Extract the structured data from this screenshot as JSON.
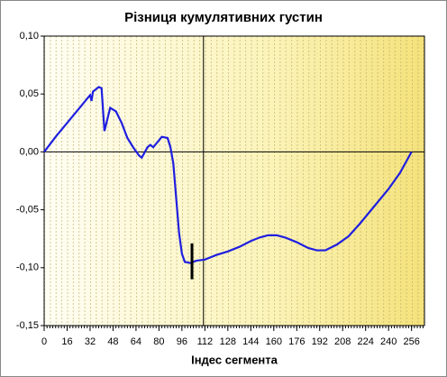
{
  "chart_data": {
    "type": "line",
    "title": "Різниця кумулятивних густин",
    "x_label": "Індес сегмента",
    "x": [
      0,
      8,
      16,
      24,
      30,
      32,
      33,
      34,
      36,
      38,
      40,
      42,
      44,
      46,
      50,
      54,
      58,
      62,
      66,
      68,
      72,
      74,
      76,
      80,
      82,
      86,
      88,
      90,
      92,
      94,
      96,
      98,
      102,
      106,
      112,
      120,
      128,
      136,
      144,
      150,
      156,
      162,
      168,
      176,
      184,
      190,
      196,
      204,
      212,
      220,
      230,
      240,
      248,
      256
    ],
    "series": [
      {
        "color": "#1f1fe0",
        "values": [
          0,
          0.013,
          0.025,
          0.037,
          0.046,
          0.049,
          0.044,
          0.052,
          0.054,
          0.056,
          0.055,
          0.018,
          0.028,
          0.038,
          0.035,
          0.025,
          0.012,
          0.004,
          -0.003,
          -0.005,
          0.004,
          0.006,
          0.004,
          0.01,
          0.013,
          0.012,
          0.004,
          -0.01,
          -0.04,
          -0.07,
          -0.088,
          -0.095,
          -0.096,
          -0.094,
          -0.093,
          -0.089,
          -0.086,
          -0.082,
          -0.077,
          -0.074,
          -0.072,
          -0.072,
          -0.074,
          -0.078,
          -0.083,
          -0.085,
          -0.085,
          -0.08,
          -0.073,
          -0.062,
          -0.047,
          -0.032,
          -0.018,
          0.0
        ]
      }
    ],
    "xlim": [
      0,
      265
    ],
    "ylim": [
      -0.15,
      0.1
    ],
    "xticks": [
      0,
      16,
      32,
      48,
      64,
      80,
      96,
      112,
      128,
      144,
      160,
      176,
      192,
      208,
      224,
      240,
      256
    ],
    "yticks": [
      {
        "value": -0.15,
        "label": "-0,15"
      },
      {
        "value": -0.1,
        "label": "-0,10"
      },
      {
        "value": -0.05,
        "label": "-0,05"
      },
      {
        "value": 0,
        "label": "0,00"
      },
      {
        "value": 0.05,
        "label": "0,05"
      },
      {
        "value": 0.1,
        "label": "0,10"
      }
    ],
    "vline_x": 111,
    "range_mark": {
      "x": 103,
      "low": -0.11,
      "high": -0.079
    }
  }
}
